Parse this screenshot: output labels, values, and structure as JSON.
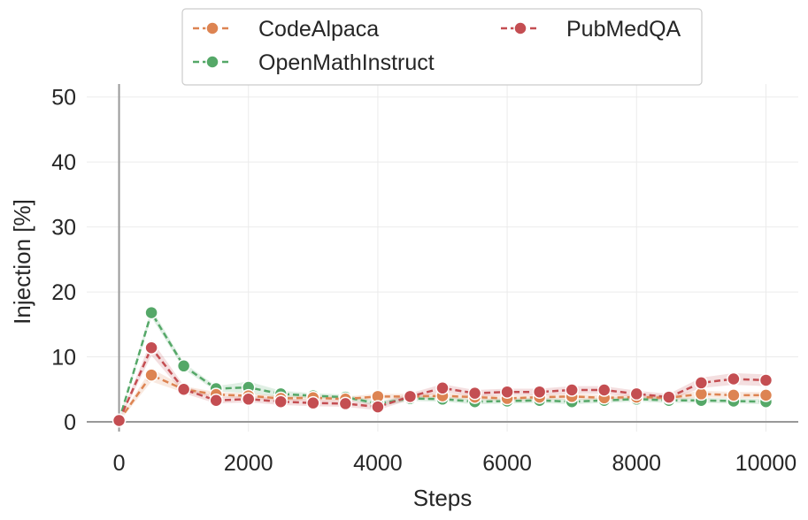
{
  "chart_data": {
    "type": "line",
    "title": "",
    "xlabel": "Steps",
    "ylabel": "Injection [%]",
    "xlim": [
      -500,
      10500
    ],
    "ylim": [
      -1.5,
      52
    ],
    "xticks": [
      0,
      2000,
      4000,
      6000,
      8000,
      10000
    ],
    "yticks": [
      0,
      10,
      20,
      30,
      40,
      50
    ],
    "grid": true,
    "legend_position": "top-center",
    "x": [
      0,
      500,
      1000,
      1500,
      2000,
      2500,
      3000,
      3500,
      4000,
      4500,
      5000,
      5500,
      6000,
      6500,
      7000,
      7500,
      8000,
      8500,
      9000,
      9500,
      10000
    ],
    "series": [
      {
        "name": "CodeAlpaca",
        "color": "#dd8452",
        "values": [
          0.2,
          7.2,
          5.0,
          4.2,
          4.0,
          3.6,
          3.7,
          3.5,
          3.9,
          3.9,
          4.0,
          3.8,
          3.6,
          3.8,
          3.9,
          3.7,
          3.8,
          3.7,
          4.3,
          4.1,
          4.1
        ],
        "band": [
          0.2,
          1.0,
          0.5,
          0.4,
          0.4,
          0.4,
          0.4,
          0.4,
          0.4,
          0.4,
          0.4,
          0.4,
          0.4,
          0.4,
          0.4,
          0.4,
          0.4,
          0.4,
          0.5,
          0.5,
          0.5
        ]
      },
      {
        "name": "PubMedQA",
        "color": "#c44e52",
        "values": [
          0.2,
          11.4,
          5.0,
          3.3,
          3.5,
          3.1,
          2.9,
          2.8,
          2.3,
          3.9,
          5.2,
          4.4,
          4.6,
          4.6,
          4.9,
          4.9,
          4.3,
          3.8,
          6.0,
          6.6,
          6.4
        ],
        "band": [
          0.2,
          1.2,
          0.6,
          0.5,
          0.5,
          0.5,
          0.5,
          0.5,
          0.5,
          0.5,
          0.6,
          0.5,
          0.5,
          0.5,
          0.6,
          0.6,
          0.5,
          0.5,
          0.8,
          0.9,
          0.9
        ]
      },
      {
        "name": "OpenMathInstruct",
        "color": "#55a868",
        "values": [
          0.2,
          16.8,
          8.6,
          5.1,
          5.3,
          4.3,
          4.0,
          3.8,
          2.8,
          3.6,
          3.5,
          3.1,
          3.2,
          3.3,
          3.1,
          3.3,
          3.5,
          3.3,
          3.3,
          3.2,
          3.1
        ],
        "band": [
          0.2,
          0.7,
          0.5,
          0.4,
          0.9,
          0.5,
          0.4,
          0.4,
          0.4,
          0.4,
          0.4,
          0.4,
          0.4,
          0.4,
          0.4,
          0.4,
          0.4,
          0.4,
          0.4,
          0.4,
          0.4
        ]
      }
    ]
  }
}
